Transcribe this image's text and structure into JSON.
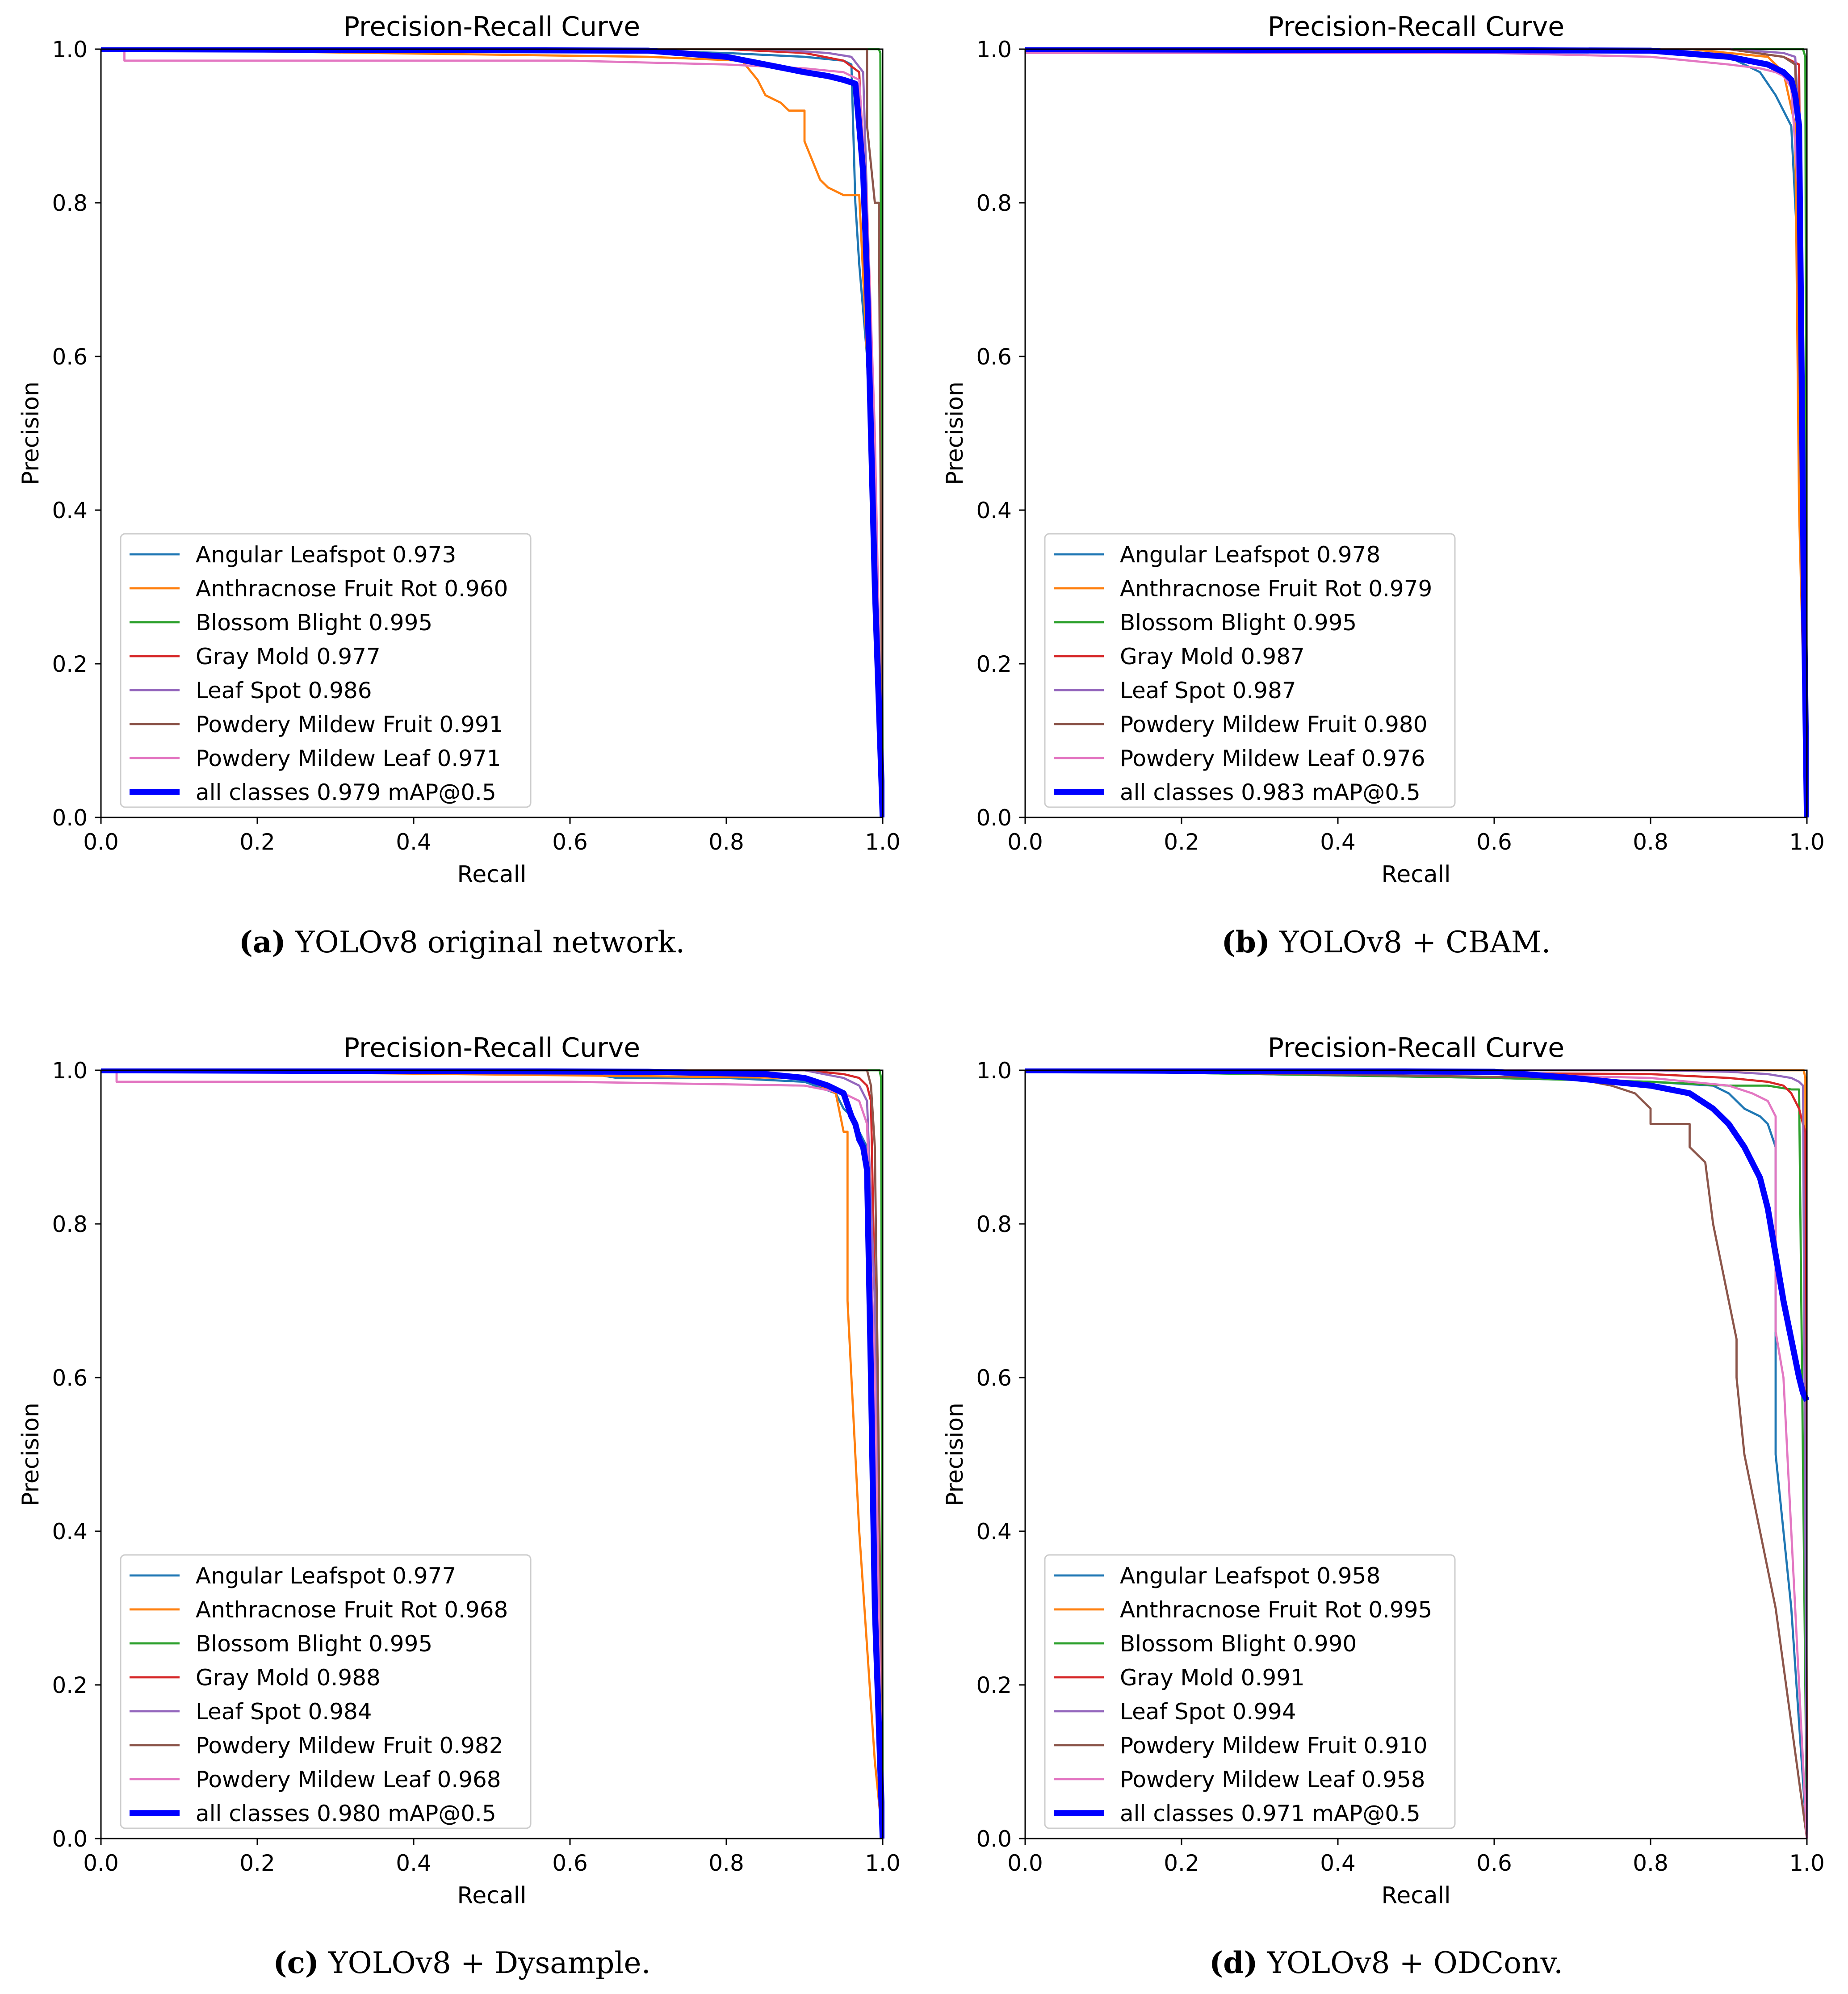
{
  "colors": {
    "angular": "#1f77b4",
    "anthracnose": "#ff7f0e",
    "blossom": "#2ca02c",
    "graymold": "#d62728",
    "leafspot": "#9467bd",
    "pmfruit": "#8c564b",
    "pmleaf": "#e377c2",
    "all": "#0000ff"
  },
  "chart_data": [
    {
      "type": "line",
      "title": "Precision-Recall Curve",
      "xlabel": "Recall",
      "ylabel": "Precision",
      "xlim": [
        0,
        1
      ],
      "ylim": [
        0,
        1
      ],
      "xticks": [
        "0.0",
        "0.2",
        "0.4",
        "0.6",
        "0.8",
        "1.0"
      ],
      "yticks": [
        "0.0",
        "0.2",
        "0.4",
        "0.6",
        "0.8",
        "1.0"
      ],
      "legend_position": "lower-left",
      "caption": {
        "letter": "(a)",
        "text": " YOLOv8 original network."
      },
      "series": [
        {
          "name": "Angular Leafspot 0.973",
          "color": "angular",
          "width": 1.6,
          "x": [
            0,
            0.6,
            0.8,
            0.9,
            0.95,
            0.96,
            0.965,
            0.97,
            0.98,
            0.99,
            1.0
          ],
          "y": [
            1,
            1,
            0.995,
            0.99,
            0.985,
            0.98,
            0.8,
            0.72,
            0.6,
            0.3,
            0
          ]
        },
        {
          "name": "Anthracnose Fruit Rot 0.960",
          "color": "anthracnose",
          "width": 1.6,
          "x": [
            0,
            0.7,
            0.82,
            0.84,
            0.85,
            0.87,
            0.88,
            0.9,
            0.9,
            0.92,
            0.93,
            0.95,
            0.97,
            0.98,
            0.99,
            1.0
          ],
          "y": [
            1,
            0.99,
            0.985,
            0.96,
            0.94,
            0.93,
            0.92,
            0.92,
            0.88,
            0.83,
            0.82,
            0.81,
            0.81,
            0.6,
            0.3,
            0
          ]
        },
        {
          "name": "Blossom Blight 0.995",
          "color": "blossom",
          "width": 1.6,
          "x": [
            0,
            0.98,
            0.995,
            0.997,
            1.0
          ],
          "y": [
            1,
            1,
            1,
            0.995,
            0
          ]
        },
        {
          "name": "Gray Mold 0.977",
          "color": "graymold",
          "width": 1.6,
          "x": [
            0,
            0.8,
            0.9,
            0.95,
            0.97,
            0.975,
            0.98,
            0.99,
            1.0
          ],
          "y": [
            1,
            1,
            0.995,
            0.985,
            0.97,
            0.85,
            0.6,
            0.3,
            0
          ]
        },
        {
          "name": "Leaf Spot 0.986",
          "color": "leafspot",
          "width": 1.6,
          "x": [
            0,
            0.85,
            0.93,
            0.96,
            0.975,
            0.98,
            0.99,
            1.0
          ],
          "y": [
            1,
            1,
            0.995,
            0.99,
            0.97,
            0.8,
            0.4,
            0
          ]
        },
        {
          "name": "Powdery Mildew Fruit 0.991",
          "color": "pmfruit",
          "width": 1.6,
          "x": [
            0,
            0.95,
            0.98,
            0.98,
            0.99,
            0.995,
            1.0
          ],
          "y": [
            1,
            1,
            1,
            0.9,
            0.8,
            0.8,
            0
          ]
        },
        {
          "name": "Powdery Mildew Leaf 0.971",
          "color": "pmleaf",
          "width": 1.6,
          "x": [
            0,
            0.03,
            0.03,
            0.6,
            0.8,
            0.9,
            0.95,
            0.97,
            0.98,
            0.99,
            1.0
          ],
          "y": [
            1,
            1,
            0.985,
            0.985,
            0.98,
            0.975,
            0.97,
            0.96,
            0.8,
            0.5,
            0
          ]
        },
        {
          "name": "all classes 0.979 mAP@0.5",
          "color": "all",
          "width": 4.5,
          "x": [
            0,
            0.7,
            0.8,
            0.85,
            0.9,
            0.93,
            0.95,
            0.965,
            0.97,
            0.975,
            0.98,
            0.985,
            0.99,
            0.995,
            1.0
          ],
          "y": [
            1,
            0.998,
            0.99,
            0.98,
            0.97,
            0.965,
            0.96,
            0.955,
            0.9,
            0.84,
            0.7,
            0.5,
            0.3,
            0.15,
            0
          ]
        }
      ]
    },
    {
      "type": "line",
      "title": "Precision-Recall Curve",
      "xlabel": "Recall",
      "ylabel": "Precision",
      "xlim": [
        0,
        1
      ],
      "ylim": [
        0,
        1
      ],
      "xticks": [
        "0.0",
        "0.2",
        "0.4",
        "0.6",
        "0.8",
        "1.0"
      ],
      "yticks": [
        "0.0",
        "0.2",
        "0.4",
        "0.6",
        "0.8",
        "1.0"
      ],
      "legend_position": "lower-left",
      "caption": {
        "letter": "(b)",
        "text": " YOLOv8 + CBAM."
      },
      "series": [
        {
          "name": "Angular Leafspot 0.978",
          "color": "angular",
          "width": 1.6,
          "x": [
            0,
            0.8,
            0.9,
            0.94,
            0.96,
            0.97,
            0.98,
            0.99,
            0.995,
            1.0
          ],
          "y": [
            1,
            1,
            0.99,
            0.97,
            0.94,
            0.92,
            0.9,
            0.7,
            0.3,
            0
          ]
        },
        {
          "name": "Anthracnose Fruit Rot 0.979",
          "color": "anthracnose",
          "width": 1.6,
          "x": [
            0,
            0.85,
            0.95,
            0.97,
            0.985,
            0.99,
            0.995,
            1.0
          ],
          "y": [
            1,
            1,
            0.99,
            0.97,
            0.9,
            0.4,
            0.2,
            0
          ]
        },
        {
          "name": "Blossom Blight 0.995",
          "color": "blossom",
          "width": 1.6,
          "x": [
            0,
            0.99,
            0.995,
            0.998,
            1.0
          ],
          "y": [
            1,
            1,
            1,
            0.99,
            0
          ]
        },
        {
          "name": "Gray Mold 0.987",
          "color": "graymold",
          "width": 1.6,
          "x": [
            0,
            0.9,
            0.97,
            0.99,
            0.993,
            0.997,
            1.0
          ],
          "y": [
            1,
            1,
            0.99,
            0.98,
            0.6,
            0.2,
            0
          ]
        },
        {
          "name": "Leaf Spot 0.987",
          "color": "leafspot",
          "width": 1.6,
          "x": [
            0,
            0.9,
            0.97,
            0.985,
            0.99,
            0.995,
            1.0
          ],
          "y": [
            1,
            1,
            0.995,
            0.99,
            0.9,
            0.4,
            0
          ]
        },
        {
          "name": "Powdery Mildew Fruit 0.980",
          "color": "pmfruit",
          "width": 1.6,
          "x": [
            0,
            0.9,
            0.97,
            0.985,
            0.99,
            0.994,
            0.997,
            1.0
          ],
          "y": [
            1,
            1,
            0.99,
            0.98,
            0.8,
            0.4,
            0.3,
            0
          ]
        },
        {
          "name": "Powdery Mildew Leaf 0.976",
          "color": "pmleaf",
          "width": 1.6,
          "x": [
            0,
            0.6,
            0.8,
            0.9,
            0.94,
            0.96,
            0.97,
            0.98,
            0.99,
            0.995,
            1.0
          ],
          "y": [
            0.995,
            0.995,
            0.99,
            0.98,
            0.975,
            0.97,
            0.965,
            0.95,
            0.8,
            0.4,
            0
          ]
        },
        {
          "name": "all classes 0.983 mAP@0.5",
          "color": "all",
          "width": 4.5,
          "x": [
            0,
            0.8,
            0.9,
            0.95,
            0.97,
            0.98,
            0.985,
            0.99,
            0.993,
            0.996,
            0.998,
            1.0
          ],
          "y": [
            1,
            0.998,
            0.99,
            0.98,
            0.97,
            0.96,
            0.94,
            0.9,
            0.6,
            0.3,
            0.15,
            0
          ]
        }
      ]
    },
    {
      "type": "line",
      "title": "Precision-Recall Curve",
      "xlabel": "Recall",
      "ylabel": "Precision",
      "xlim": [
        0,
        1
      ],
      "ylim": [
        0,
        1
      ],
      "xticks": [
        "0.0",
        "0.2",
        "0.4",
        "0.6",
        "0.8",
        "1.0"
      ],
      "yticks": [
        "0.0",
        "0.2",
        "0.4",
        "0.6",
        "0.8",
        "1.0"
      ],
      "legend_position": "lower-left",
      "caption": {
        "letter": "(c)",
        "text": " YOLOv8 + Dysample."
      },
      "series": [
        {
          "name": "Angular Leafspot 0.977",
          "color": "angular",
          "width": 1.6,
          "x": [
            0,
            0.6,
            0.66,
            0.8,
            0.9,
            0.94,
            0.95,
            0.96,
            0.965,
            0.97,
            0.98,
            0.99,
            1.0
          ],
          "y": [
            1,
            1,
            0.99,
            0.99,
            0.985,
            0.97,
            0.95,
            0.94,
            0.93,
            0.92,
            0.9,
            0.5,
            0
          ]
        },
        {
          "name": "Anthracnose Fruit Rot 0.968",
          "color": "anthracnose",
          "width": 1.6,
          "x": [
            0,
            0.9,
            0.94,
            0.95,
            0.955,
            0.955,
            0.96,
            0.97,
            0.98,
            0.99,
            1.0
          ],
          "y": [
            1,
            0.99,
            0.97,
            0.92,
            0.92,
            0.7,
            0.6,
            0.4,
            0.25,
            0.1,
            0
          ]
        },
        {
          "name": "Blossom Blight 0.995",
          "color": "blossom",
          "width": 1.6,
          "x": [
            0,
            0.99,
            0.996,
            0.998,
            1.0
          ],
          "y": [
            1,
            1,
            1,
            0.99,
            0
          ]
        },
        {
          "name": "Gray Mold 0.988",
          "color": "graymold",
          "width": 1.6,
          "x": [
            0,
            0.9,
            0.95,
            0.97,
            0.98,
            0.985,
            0.99,
            0.995,
            1.0
          ],
          "y": [
            1,
            1,
            0.995,
            0.99,
            0.98,
            0.96,
            0.7,
            0.3,
            0
          ]
        },
        {
          "name": "Leaf Spot 0.984",
          "color": "leafspot",
          "width": 1.6,
          "x": [
            0,
            0.9,
            0.95,
            0.97,
            0.98,
            0.99,
            0.995,
            1.0
          ],
          "y": [
            1,
            1,
            0.99,
            0.98,
            0.96,
            0.7,
            0.3,
            0
          ]
        },
        {
          "name": "Powdery Mildew Fruit 0.982",
          "color": "pmfruit",
          "width": 1.6,
          "x": [
            0,
            0.95,
            0.98,
            0.985,
            0.99,
            0.995,
            1.0
          ],
          "y": [
            1,
            1,
            1,
            0.98,
            0.9,
            0.5,
            0
          ]
        },
        {
          "name": "Powdery Mildew Leaf 0.968",
          "color": "pmleaf",
          "width": 1.6,
          "x": [
            0,
            0.02,
            0.02,
            0.6,
            0.9,
            0.95,
            0.97,
            0.98,
            0.99,
            0.995,
            1.0
          ],
          "y": [
            1,
            1,
            0.985,
            0.985,
            0.98,
            0.97,
            0.96,
            0.93,
            0.6,
            0.3,
            0
          ]
        },
        {
          "name": "all classes 0.980 mAP@0.5",
          "color": "all",
          "width": 4.5,
          "x": [
            0,
            0.7,
            0.85,
            0.9,
            0.93,
            0.95,
            0.96,
            0.965,
            0.97,
            0.975,
            0.98,
            0.985,
            0.99,
            0.995,
            1.0
          ],
          "y": [
            1,
            0.998,
            0.995,
            0.99,
            0.98,
            0.97,
            0.94,
            0.93,
            0.91,
            0.9,
            0.87,
            0.6,
            0.3,
            0.15,
            0
          ]
        }
      ]
    },
    {
      "type": "line",
      "title": "Precision-Recall Curve",
      "xlabel": "Recall",
      "ylabel": "Precision",
      "xlim": [
        0,
        1
      ],
      "ylim": [
        0,
        1
      ],
      "xticks": [
        "0.0",
        "0.2",
        "0.4",
        "0.6",
        "0.8",
        "1.0"
      ],
      "yticks": [
        "0.0",
        "0.2",
        "0.4",
        "0.6",
        "0.8",
        "1.0"
      ],
      "legend_position": "lower-left",
      "caption": {
        "letter": "(d)",
        "text": " YOLOv8 + ODConv."
      },
      "series": [
        {
          "name": "Angular Leafspot 0.958",
          "color": "angular",
          "width": 1.6,
          "x": [
            0,
            0.6,
            0.8,
            0.88,
            0.9,
            0.92,
            0.94,
            0.95,
            0.96,
            0.96,
            0.97,
            0.98,
            0.99,
            1.0
          ],
          "y": [
            1,
            0.99,
            0.985,
            0.98,
            0.97,
            0.95,
            0.94,
            0.93,
            0.9,
            0.5,
            0.4,
            0.3,
            0.15,
            0
          ]
        },
        {
          "name": "Anthracnose Fruit Rot 0.995",
          "color": "anthracnose",
          "width": 1.6,
          "x": [
            0,
            0.99,
            0.996,
            0.998,
            1.0
          ],
          "y": [
            1,
            1,
            1,
            0.99,
            0
          ]
        },
        {
          "name": "Blossom Blight 0.990",
          "color": "blossom",
          "width": 1.6,
          "x": [
            0,
            0.6,
            0.8,
            0.9,
            0.95,
            0.98,
            0.99,
            1.0
          ],
          "y": [
            1,
            0.99,
            0.985,
            0.98,
            0.98,
            0.975,
            0.975,
            0
          ]
        },
        {
          "name": "Gray Mold 0.991",
          "color": "graymold",
          "width": 1.6,
          "x": [
            0,
            0.8,
            0.9,
            0.95,
            0.97,
            0.98,
            0.99,
            0.995,
            0.998,
            1.0
          ],
          "y": [
            1,
            0.995,
            0.99,
            0.985,
            0.98,
            0.97,
            0.95,
            0.93,
            0.92,
            0
          ]
        },
        {
          "name": "Leaf Spot 0.994",
          "color": "leafspot",
          "width": 1.6,
          "x": [
            0,
            0.8,
            0.9,
            0.95,
            0.98,
            0.99,
            0.995,
            1.0
          ],
          "y": [
            1,
            1,
            0.998,
            0.995,
            0.99,
            0.985,
            0.98,
            0
          ]
        },
        {
          "name": "Powdery Mildew Fruit 0.910",
          "color": "pmfruit",
          "width": 1.6,
          "x": [
            0,
            0.7,
            0.75,
            0.78,
            0.8,
            0.8,
            0.85,
            0.85,
            0.87,
            0.88,
            0.9,
            0.91,
            0.91,
            0.92,
            0.94,
            0.96,
            0.98,
            1.0
          ],
          "y": [
            1,
            0.99,
            0.98,
            0.97,
            0.95,
            0.93,
            0.93,
            0.9,
            0.88,
            0.8,
            0.7,
            0.65,
            0.6,
            0.5,
            0.4,
            0.3,
            0.15,
            0
          ]
        },
        {
          "name": "Powdery Mildew Leaf 0.958",
          "color": "pmleaf",
          "width": 1.6,
          "x": [
            0,
            0.6,
            0.8,
            0.9,
            0.93,
            0.95,
            0.96,
            0.96,
            0.97,
            0.98,
            0.99,
            1.0
          ],
          "y": [
            1,
            0.995,
            0.99,
            0.98,
            0.97,
            0.96,
            0.94,
            0.66,
            0.6,
            0.4,
            0.2,
            0
          ]
        },
        {
          "name": "all classes 0.971 mAP@0.5",
          "color": "all",
          "width": 4.5,
          "x": [
            0,
            0.6,
            0.7,
            0.8,
            0.85,
            0.88,
            0.9,
            0.92,
            0.94,
            0.95,
            0.96,
            0.97,
            0.98,
            0.99,
            0.995,
            1.0
          ],
          "y": [
            1,
            0.998,
            0.99,
            0.98,
            0.97,
            0.95,
            0.93,
            0.9,
            0.86,
            0.82,
            0.76,
            0.7,
            0.65,
            0.6,
            0.58,
            0.57
          ]
        }
      ]
    }
  ]
}
